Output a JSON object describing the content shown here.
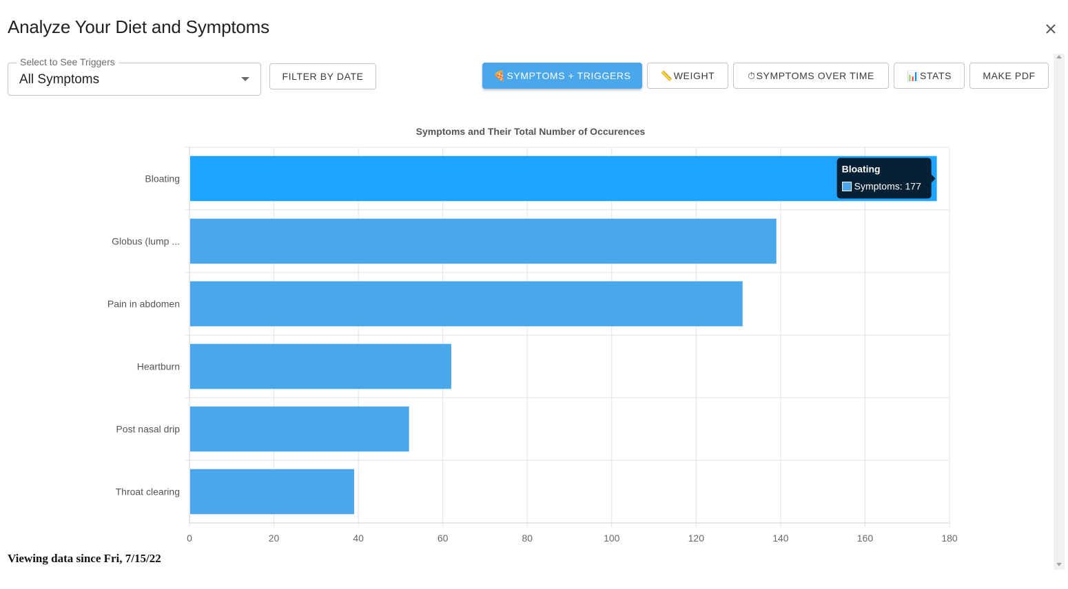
{
  "header": {
    "title": "Analyze Your Diet and Symptoms",
    "close_icon": "close-icon"
  },
  "filter": {
    "legend": "Select to See Triggers",
    "selected": "All Symptoms",
    "filter_by_date": "FILTER BY DATE"
  },
  "toolbar": {
    "symptoms_triggers": {
      "icon": "🍕",
      "label": "SYMPTOMS + TRIGGERS"
    },
    "weight": {
      "icon": "📏",
      "label": "WEIGHT"
    },
    "symptoms_over_time": {
      "icon": "⏱",
      "label": "SYMPTOMS OVER TIME"
    },
    "stats": {
      "icon": "📊",
      "label": "STATS"
    },
    "make_pdf": {
      "label": "MAKE PDF"
    }
  },
  "colors": {
    "bar": "#4aa7ec",
    "bar_hover": "#1ea3ff",
    "tooltip_bg": "#082033",
    "primary_button": "#4aa7ec"
  },
  "chart_data": {
    "type": "bar",
    "orientation": "horizontal",
    "title": "Symptoms and Their Total Number of Occurences",
    "categories": [
      "Bloating",
      "Globus (lump ...",
      "Pain in abdomen",
      "Heartburn",
      "Post nasal drip",
      "Throat clearing"
    ],
    "series": [
      {
        "name": "Symptoms",
        "values": [
          177,
          139,
          131,
          62,
          52,
          39
        ]
      }
    ],
    "xlim": [
      0,
      180
    ],
    "ticks": [
      0,
      20,
      40,
      60,
      80,
      100,
      120,
      140,
      160,
      180
    ],
    "grid": true,
    "highlighted_index": 0,
    "tooltip": {
      "title": "Bloating",
      "text": "Symptoms: 177"
    }
  },
  "footer": {
    "text": "Viewing data since Fri, 7/15/22"
  }
}
